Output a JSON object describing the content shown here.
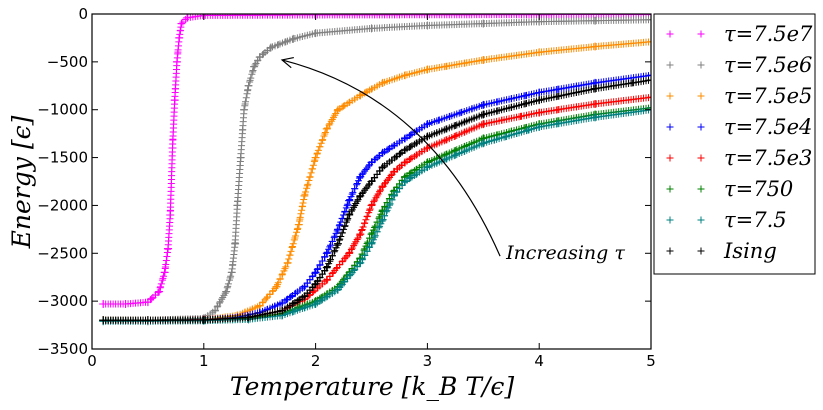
{
  "chart_data": {
    "type": "scatter",
    "title": "",
    "xlabel": "Temperature [k_B T/ϵ]",
    "ylabel": "Energy [ϵ]",
    "xlim": [
      0,
      5
    ],
    "ylim": [
      -3500,
      0
    ],
    "xticks": [
      "0",
      "1",
      "2",
      "3",
      "4",
      "5"
    ],
    "yticks": [
      "0",
      "−500",
      "−1000",
      "−1500",
      "−2000",
      "−2500",
      "−3000",
      "−3500"
    ],
    "marker": "+",
    "grid": false,
    "legend_position": "outside-right",
    "annotation": {
      "text": "Increasing τ",
      "arrow_from": [
        3.65,
        -2530
      ],
      "arrow_to": [
        1.7,
        -480
      ]
    },
    "series": [
      {
        "name": "τ=7.5e7",
        "color": "#ff00ff",
        "x": [
          0.1,
          0.3,
          0.5,
          0.6,
          0.65,
          0.68,
          0.7,
          0.72,
          0.74,
          0.76,
          0.78,
          0.8,
          0.85,
          1.0,
          2.0,
          3.0,
          4.0,
          5.0
        ],
        "y": [
          -3030,
          -3030,
          -3010,
          -2900,
          -2700,
          -2450,
          -2100,
          -1400,
          -900,
          -500,
          -250,
          -100,
          -40,
          -15,
          -10,
          -8,
          -6,
          -5
        ]
      },
      {
        "name": "τ=7.5e6",
        "color": "#808080",
        "x": [
          0.1,
          0.5,
          1.0,
          1.1,
          1.2,
          1.25,
          1.28,
          1.3,
          1.33,
          1.36,
          1.4,
          1.45,
          1.5,
          1.6,
          1.8,
          2.0,
          2.5,
          3.0,
          3.5,
          4.0,
          4.5,
          5.0
        ],
        "y": [
          -3200,
          -3200,
          -3180,
          -3100,
          -2900,
          -2700,
          -2400,
          -2000,
          -1500,
          -1000,
          -750,
          -550,
          -450,
          -350,
          -260,
          -200,
          -150,
          -120,
          -100,
          -80,
          -70,
          -60
        ]
      },
      {
        "name": "τ=7.5e5",
        "color": "#ff8c00",
        "x": [
          0.1,
          0.5,
          1.0,
          1.3,
          1.5,
          1.65,
          1.75,
          1.85,
          1.9,
          2.0,
          2.1,
          2.2,
          2.4,
          2.6,
          2.8,
          3.0,
          3.5,
          4.0,
          4.5,
          5.0
        ],
        "y": [
          -3200,
          -3200,
          -3195,
          -3150,
          -3050,
          -2850,
          -2600,
          -2200,
          -1900,
          -1500,
          -1200,
          -1000,
          -850,
          -720,
          -640,
          -580,
          -480,
          -400,
          -340,
          -290
        ]
      },
      {
        "name": "τ=7.5e4",
        "color": "#0000ff",
        "x": [
          0.1,
          0.5,
          1.0,
          1.3,
          1.5,
          1.7,
          1.9,
          2.0,
          2.1,
          2.2,
          2.3,
          2.4,
          2.5,
          2.6,
          2.8,
          3.0,
          3.5,
          4.0,
          4.5,
          5.0
        ],
        "y": [
          -3200,
          -3200,
          -3195,
          -3170,
          -3120,
          -3020,
          -2850,
          -2700,
          -2500,
          -2250,
          -1950,
          -1700,
          -1550,
          -1450,
          -1300,
          -1150,
          -950,
          -820,
          -720,
          -640
        ]
      },
      {
        "name": "τ=7.5e3",
        "color": "#ff0000",
        "x": [
          0.1,
          0.5,
          1.0,
          1.4,
          1.7,
          1.9,
          2.1,
          2.3,
          2.4,
          2.5,
          2.6,
          2.7,
          2.8,
          3.0,
          3.5,
          4.0,
          4.5,
          5.0
        ],
        "y": [
          -3200,
          -3200,
          -3195,
          -3170,
          -3100,
          -2980,
          -2780,
          -2500,
          -2300,
          -2000,
          -1800,
          -1650,
          -1550,
          -1400,
          -1150,
          -1030,
          -940,
          -870
        ]
      },
      {
        "name": "τ=750",
        "color": "#008000",
        "x": [
          0.1,
          0.5,
          1.0,
          1.4,
          1.7,
          2.0,
          2.2,
          2.4,
          2.5,
          2.6,
          2.7,
          2.8,
          3.0,
          3.5,
          4.0,
          4.5,
          5.0
        ],
        "y": [
          -3200,
          -3200,
          -3197,
          -3180,
          -3130,
          -3000,
          -2850,
          -2550,
          -2300,
          -2050,
          -1850,
          -1700,
          -1550,
          -1300,
          -1150,
          -1050,
          -980
        ]
      },
      {
        "name": "τ=7.5",
        "color": "#008080",
        "x": [
          0.1,
          0.5,
          1.0,
          1.4,
          1.7,
          2.0,
          2.2,
          2.4,
          2.5,
          2.6,
          2.7,
          2.8,
          3.0,
          3.5,
          4.0,
          4.5,
          5.0
        ],
        "y": [
          -3210,
          -3210,
          -3205,
          -3190,
          -3150,
          -3030,
          -2880,
          -2600,
          -2400,
          -2150,
          -1900,
          -1750,
          -1600,
          -1350,
          -1180,
          -1080,
          -1000
        ]
      },
      {
        "name": "Ising",
        "color": "#000000",
        "x": [
          0.1,
          0.5,
          1.0,
          1.4,
          1.7,
          1.9,
          2.0,
          2.1,
          2.2,
          2.3,
          2.4,
          2.5,
          2.6,
          2.8,
          3.0,
          3.5,
          4.0,
          4.5,
          5.0
        ],
        "y": [
          -3200,
          -3200,
          -3197,
          -3170,
          -3100,
          -2950,
          -2820,
          -2650,
          -2400,
          -2100,
          -1900,
          -1750,
          -1600,
          -1420,
          -1280,
          -1050,
          -900,
          -780,
          -690
        ]
      }
    ]
  }
}
